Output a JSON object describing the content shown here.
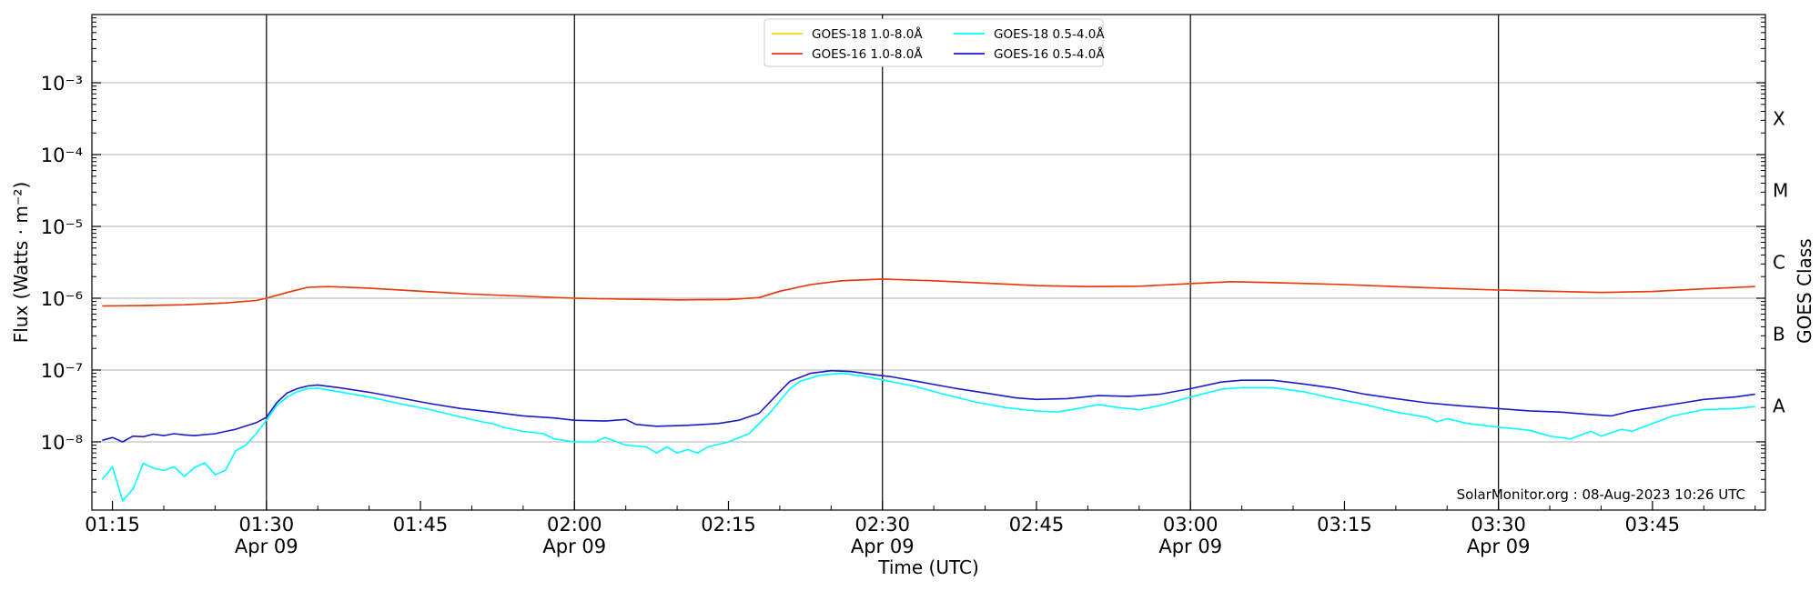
{
  "chart_data": {
    "type": "line",
    "xlabel": "Time (UTC)",
    "ylabel": "Flux (Watts · m⁻²)",
    "y2label": "GOES Class",
    "yscale": "log",
    "xlim": [
      "01:13",
      "03:56"
    ],
    "ylim_exp": [
      -8.95,
      -2.05
    ],
    "y_ticks": [
      {
        "exp": -3,
        "label": "10⁻³"
      },
      {
        "exp": -4,
        "label": "10⁻⁴"
      },
      {
        "exp": -5,
        "label": "10⁻⁵"
      },
      {
        "exp": -6,
        "label": "10⁻⁶"
      },
      {
        "exp": -7,
        "label": "10⁻⁷"
      },
      {
        "exp": -8,
        "label": "10⁻⁸"
      }
    ],
    "goes_classes": [
      {
        "label": "X",
        "exp": -3.5
      },
      {
        "label": "M",
        "exp": -4.5
      },
      {
        "label": "C",
        "exp": -5.5
      },
      {
        "label": "B",
        "exp": -6.5
      },
      {
        "label": "A",
        "exp": -7.5
      }
    ],
    "x_ticks": [
      {
        "t": "01:15",
        "label": "01:15",
        "sub": ""
      },
      {
        "t": "01:30",
        "label": "01:30",
        "sub": "Apr 09"
      },
      {
        "t": "01:45",
        "label": "01:45",
        "sub": ""
      },
      {
        "t": "02:00",
        "label": "02:00",
        "sub": "Apr 09"
      },
      {
        "t": "02:15",
        "label": "02:15",
        "sub": ""
      },
      {
        "t": "02:30",
        "label": "02:30",
        "sub": "Apr 09"
      },
      {
        "t": "02:45",
        "label": "02:45",
        "sub": ""
      },
      {
        "t": "03:00",
        "label": "03:00",
        "sub": "Apr 09"
      },
      {
        "t": "03:15",
        "label": "03:15",
        "sub": ""
      },
      {
        "t": "03:30",
        "label": "03:30",
        "sub": "Apr 09"
      },
      {
        "t": "03:45",
        "label": "03:45",
        "sub": ""
      }
    ],
    "vlines": [
      "01:30",
      "02:00",
      "02:30",
      "03:00",
      "03:30"
    ],
    "grid": true,
    "legend_position": "top-center",
    "series": [
      {
        "name": "GOES-18 1.0-8.0Å",
        "color": "#ffd700",
        "points": [
          [
            "01:14",
            7.8e-07
          ],
          [
            "01:18",
            7.9e-07
          ],
          [
            "01:22",
            8.1e-07
          ],
          [
            "01:26",
            8.6e-07
          ],
          [
            "01:29",
            9.3e-07
          ],
          [
            "01:30",
            1e-06
          ],
          [
            "01:32",
            1.2e-06
          ],
          [
            "01:34",
            1.42e-06
          ],
          [
            "01:36",
            1.45e-06
          ],
          [
            "01:40",
            1.38e-06
          ],
          [
            "01:45",
            1.25e-06
          ],
          [
            "01:50",
            1.14e-06
          ],
          [
            "02:00",
            1e-06
          ],
          [
            "02:05",
            9.7e-07
          ],
          [
            "02:10",
            9.5e-07
          ],
          [
            "02:15",
            9.6e-07
          ],
          [
            "02:18",
            1.02e-06
          ],
          [
            "02:20",
            1.25e-06
          ],
          [
            "02:23",
            1.55e-06
          ],
          [
            "02:26",
            1.75e-06
          ],
          [
            "02:30",
            1.85e-06
          ],
          [
            "02:35",
            1.75e-06
          ],
          [
            "02:40",
            1.62e-06
          ],
          [
            "02:45",
            1.5e-06
          ],
          [
            "02:50",
            1.45e-06
          ],
          [
            "02:55",
            1.47e-06
          ],
          [
            "03:00",
            1.6e-06
          ],
          [
            "03:04",
            1.7e-06
          ],
          [
            "03:10",
            1.62e-06
          ],
          [
            "03:15",
            1.55e-06
          ],
          [
            "03:20",
            1.45e-06
          ],
          [
            "03:25",
            1.37e-06
          ],
          [
            "03:30",
            1.3e-06
          ],
          [
            "03:35",
            1.25e-06
          ],
          [
            "03:40",
            1.2e-06
          ],
          [
            "03:45",
            1.24e-06
          ],
          [
            "03:50",
            1.35e-06
          ],
          [
            "03:55",
            1.45e-06
          ]
        ]
      },
      {
        "name": "GOES-16 1.0-8.0Å",
        "color": "#e8361a",
        "points": [
          [
            "01:14",
            7.8e-07
          ],
          [
            "01:18",
            7.9e-07
          ],
          [
            "01:22",
            8.1e-07
          ],
          [
            "01:26",
            8.6e-07
          ],
          [
            "01:29",
            9.3e-07
          ],
          [
            "01:30",
            1e-06
          ],
          [
            "01:32",
            1.2e-06
          ],
          [
            "01:34",
            1.42e-06
          ],
          [
            "01:36",
            1.45e-06
          ],
          [
            "01:40",
            1.38e-06
          ],
          [
            "01:45",
            1.25e-06
          ],
          [
            "01:50",
            1.14e-06
          ],
          [
            "02:00",
            1e-06
          ],
          [
            "02:05",
            9.7e-07
          ],
          [
            "02:10",
            9.5e-07
          ],
          [
            "02:15",
            9.6e-07
          ],
          [
            "02:18",
            1.02e-06
          ],
          [
            "02:20",
            1.25e-06
          ],
          [
            "02:23",
            1.55e-06
          ],
          [
            "02:26",
            1.75e-06
          ],
          [
            "02:30",
            1.85e-06
          ],
          [
            "02:35",
            1.75e-06
          ],
          [
            "02:40",
            1.62e-06
          ],
          [
            "02:45",
            1.5e-06
          ],
          [
            "02:50",
            1.45e-06
          ],
          [
            "02:55",
            1.47e-06
          ],
          [
            "03:00",
            1.6e-06
          ],
          [
            "03:04",
            1.7e-06
          ],
          [
            "03:10",
            1.62e-06
          ],
          [
            "03:15",
            1.55e-06
          ],
          [
            "03:20",
            1.45e-06
          ],
          [
            "03:25",
            1.37e-06
          ],
          [
            "03:30",
            1.3e-06
          ],
          [
            "03:35",
            1.25e-06
          ],
          [
            "03:40",
            1.2e-06
          ],
          [
            "03:45",
            1.24e-06
          ],
          [
            "03:50",
            1.35e-06
          ],
          [
            "03:55",
            1.45e-06
          ]
        ]
      },
      {
        "name": "GOES-18 0.5-4.0Å",
        "color": "#00ffff",
        "points": [
          [
            "01:14",
            3e-09
          ],
          [
            "01:15",
            4.5e-09
          ],
          [
            "01:16",
            1.5e-09
          ],
          [
            "01:17",
            2.2e-09
          ],
          [
            "01:18",
            5e-09
          ],
          [
            "01:19",
            4.3e-09
          ],
          [
            "01:20",
            4e-09
          ],
          [
            "01:21",
            4.5e-09
          ],
          [
            "01:22",
            3.3e-09
          ],
          [
            "01:23",
            4.4e-09
          ],
          [
            "01:24",
            5.1e-09
          ],
          [
            "01:25",
            3.5e-09
          ],
          [
            "01:26",
            4e-09
          ],
          [
            "01:27",
            7.5e-09
          ],
          [
            "01:28",
            9e-09
          ],
          [
            "01:29",
            1.3e-08
          ],
          [
            "01:30",
            2e-08
          ],
          [
            "01:31",
            3.2e-08
          ],
          [
            "01:32",
            4.2e-08
          ],
          [
            "01:33",
            5e-08
          ],
          [
            "01:34",
            5.5e-08
          ],
          [
            "01:35",
            5.6e-08
          ],
          [
            "01:37",
            5e-08
          ],
          [
            "01:40",
            4.2e-08
          ],
          [
            "01:43",
            3.4e-08
          ],
          [
            "01:46",
            2.8e-08
          ],
          [
            "01:49",
            2.2e-08
          ],
          [
            "01:51",
            1.9e-08
          ],
          [
            "01:52",
            1.8e-08
          ],
          [
            "01:53",
            1.6e-08
          ],
          [
            "01:55",
            1.4e-08
          ],
          [
            "01:57",
            1.3e-08
          ],
          [
            "01:58",
            1.1e-08
          ],
          [
            "02:00",
            1e-08
          ],
          [
            "02:02",
            1e-08
          ],
          [
            "02:03",
            1.15e-08
          ],
          [
            "02:05",
            9e-09
          ],
          [
            "02:07",
            8.5e-09
          ],
          [
            "02:08",
            7e-09
          ],
          [
            "02:09",
            8.5e-09
          ],
          [
            "02:10",
            7e-09
          ],
          [
            "02:11",
            7.8e-09
          ],
          [
            "02:12",
            7e-09
          ],
          [
            "02:13",
            8.5e-09
          ],
          [
            "02:15",
            1e-08
          ],
          [
            "02:17",
            1.3e-08
          ],
          [
            "02:19",
            2.5e-08
          ],
          [
            "02:21",
            5.5e-08
          ],
          [
            "02:22",
            7e-08
          ],
          [
            "02:24",
            8.5e-08
          ],
          [
            "02:26",
            9e-08
          ],
          [
            "02:28",
            8.3e-08
          ],
          [
            "02:30",
            7.3e-08
          ],
          [
            "02:33",
            6e-08
          ],
          [
            "02:36",
            4.6e-08
          ],
          [
            "02:39",
            3.6e-08
          ],
          [
            "02:42",
            3e-08
          ],
          [
            "02:45",
            2.7e-08
          ],
          [
            "02:47",
            2.6e-08
          ],
          [
            "02:49",
            2.9e-08
          ],
          [
            "02:51",
            3.3e-08
          ],
          [
            "02:53",
            3e-08
          ],
          [
            "02:55",
            2.8e-08
          ],
          [
            "02:57",
            3.2e-08
          ],
          [
            "03:00",
            4.2e-08
          ],
          [
            "03:03",
            5.4e-08
          ],
          [
            "03:05",
            5.7e-08
          ],
          [
            "03:08",
            5.7e-08
          ],
          [
            "03:11",
            5e-08
          ],
          [
            "03:14",
            4e-08
          ],
          [
            "03:17",
            3.3e-08
          ],
          [
            "03:20",
            2.6e-08
          ],
          [
            "03:23",
            2.2e-08
          ],
          [
            "03:24",
            1.9e-08
          ],
          [
            "03:25",
            2.1e-08
          ],
          [
            "03:27",
            1.8e-08
          ],
          [
            "03:30",
            1.6e-08
          ],
          [
            "03:33",
            1.45e-08
          ],
          [
            "03:35",
            1.2e-08
          ],
          [
            "03:37",
            1.1e-08
          ],
          [
            "03:39",
            1.4e-08
          ],
          [
            "03:40",
            1.2e-08
          ],
          [
            "03:42",
            1.5e-08
          ],
          [
            "03:43",
            1.4e-08
          ],
          [
            "03:45",
            1.8e-08
          ],
          [
            "03:47",
            2.3e-08
          ],
          [
            "03:50",
            2.8e-08
          ],
          [
            "03:53",
            2.9e-08
          ],
          [
            "03:55",
            3.1e-08
          ]
        ]
      },
      {
        "name": "GOES-16 0.5-4.0Å",
        "color": "#1a1acc",
        "points": [
          [
            "01:14",
            1.05e-08
          ],
          [
            "01:15",
            1.15e-08
          ],
          [
            "01:16",
            1e-08
          ],
          [
            "01:17",
            1.2e-08
          ],
          [
            "01:18",
            1.18e-08
          ],
          [
            "01:19",
            1.28e-08
          ],
          [
            "01:20",
            1.22e-08
          ],
          [
            "01:21",
            1.3e-08
          ],
          [
            "01:22",
            1.25e-08
          ],
          [
            "01:23",
            1.22e-08
          ],
          [
            "01:25",
            1.3e-08
          ],
          [
            "01:27",
            1.5e-08
          ],
          [
            "01:29",
            1.85e-08
          ],
          [
            "01:30",
            2.2e-08
          ],
          [
            "01:31",
            3.5e-08
          ],
          [
            "01:32",
            4.8e-08
          ],
          [
            "01:33",
            5.5e-08
          ],
          [
            "01:34",
            6e-08
          ],
          [
            "01:35",
            6.2e-08
          ],
          [
            "01:37",
            5.7e-08
          ],
          [
            "01:40",
            4.9e-08
          ],
          [
            "01:43",
            4.1e-08
          ],
          [
            "01:46",
            3.4e-08
          ],
          [
            "01:49",
            2.9e-08
          ],
          [
            "01:52",
            2.6e-08
          ],
          [
            "01:55",
            2.3e-08
          ],
          [
            "01:58",
            2.15e-08
          ],
          [
            "02:00",
            2e-08
          ],
          [
            "02:03",
            1.95e-08
          ],
          [
            "02:05",
            2.05e-08
          ],
          [
            "02:06",
            1.75e-08
          ],
          [
            "02:08",
            1.65e-08
          ],
          [
            "02:11",
            1.7e-08
          ],
          [
            "02:14",
            1.8e-08
          ],
          [
            "02:16",
            2e-08
          ],
          [
            "02:18",
            2.5e-08
          ],
          [
            "02:20",
            5e-08
          ],
          [
            "02:21",
            7e-08
          ],
          [
            "02:23",
            9e-08
          ],
          [
            "02:25",
            9.8e-08
          ],
          [
            "02:27",
            9.5e-08
          ],
          [
            "02:29",
            8.7e-08
          ],
          [
            "02:31",
            8e-08
          ],
          [
            "02:34",
            6.7e-08
          ],
          [
            "02:37",
            5.6e-08
          ],
          [
            "02:40",
            4.8e-08
          ],
          [
            "02:43",
            4.1e-08
          ],
          [
            "02:45",
            3.9e-08
          ],
          [
            "02:48",
            4e-08
          ],
          [
            "02:51",
            4.4e-08
          ],
          [
            "02:54",
            4.3e-08
          ],
          [
            "02:57",
            4.6e-08
          ],
          [
            "03:00",
            5.5e-08
          ],
          [
            "03:03",
            6.8e-08
          ],
          [
            "03:05",
            7.2e-08
          ],
          [
            "03:08",
            7.2e-08
          ],
          [
            "03:11",
            6.4e-08
          ],
          [
            "03:14",
            5.6e-08
          ],
          [
            "03:17",
            4.6e-08
          ],
          [
            "03:20",
            4e-08
          ],
          [
            "03:23",
            3.5e-08
          ],
          [
            "03:26",
            3.2e-08
          ],
          [
            "03:30",
            2.9e-08
          ],
          [
            "03:33",
            2.7e-08
          ],
          [
            "03:36",
            2.6e-08
          ],
          [
            "03:39",
            2.4e-08
          ],
          [
            "03:41",
            2.3e-08
          ],
          [
            "03:43",
            2.7e-08
          ],
          [
            "03:45",
            3e-08
          ],
          [
            "03:48",
            3.5e-08
          ],
          [
            "03:50",
            3.9e-08
          ],
          [
            "03:53",
            4.2e-08
          ],
          [
            "03:55",
            4.6e-08
          ]
        ]
      }
    ],
    "annotation": "SolarMonitor.org : 08-Aug-2023 10:26 UTC"
  }
}
